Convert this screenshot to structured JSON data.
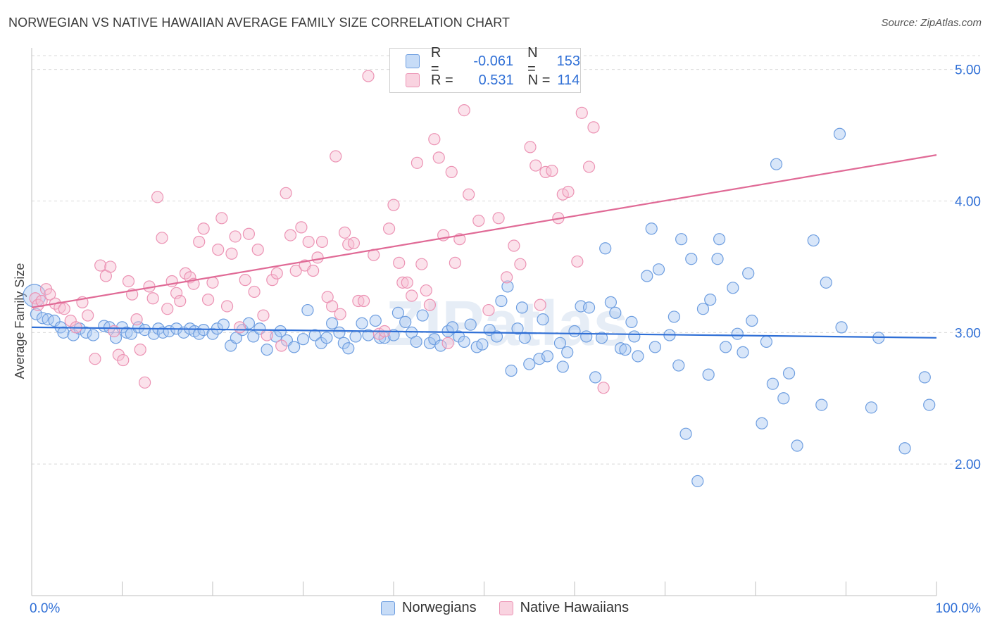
{
  "title": "NORWEGIAN VS NATIVE HAWAIIAN AVERAGE FAMILY SIZE CORRELATION CHART",
  "source": "Source: ZipAtlas.com",
  "watermark": "ZIPatlas",
  "legend": {
    "rows": [
      {
        "r_label": "R =",
        "r_value": "-0.061",
        "n_label": "N =",
        "n_value": "153"
      },
      {
        "r_label": "R =",
        "r_value": "0.531",
        "n_label": "N =",
        "n_value": "114"
      }
    ]
  },
  "colors": {
    "blue": "#2f6fd6",
    "blue_fill": "#a9c8f2",
    "blue_stroke": "#6e9ee0",
    "pink": "#e06a96",
    "pink_fill": "#f6bfd2",
    "pink_stroke": "#ec93b4",
    "grid": "#d9d9d9",
    "axis_text": "#2f6fd6"
  },
  "chart_data": {
    "type": "scatter",
    "title": "NORWEGIAN VS NATIVE HAWAIIAN AVERAGE FAMILY SIZE CORRELATION CHART",
    "xlabel": "",
    "ylabel": "Average Family Size",
    "xlim": [
      0,
      100
    ],
    "ylim": [
      1.0,
      5.1
    ],
    "x_tick_labels": [
      "0.0%",
      "100.0%"
    ],
    "y_ticks": [
      2.0,
      3.0,
      4.0,
      5.0
    ],
    "y_tick_labels": [
      "2.00",
      "3.00",
      "4.00",
      "5.00"
    ],
    "grid": true,
    "legend_position": "top-center",
    "series": [
      {
        "name": "Norwegians",
        "color": "#2f6fd6",
        "r": -0.061,
        "n": 153,
        "trend": [
          [
            0,
            3.04
          ],
          [
            100,
            2.96
          ]
        ],
        "points": [
          [
            0.3,
            3.28
          ],
          [
            0.5,
            3.14
          ],
          [
            1.2,
            3.11
          ],
          [
            1.8,
            3.1
          ],
          [
            2.5,
            3.09
          ],
          [
            3.2,
            3.04
          ],
          [
            3.5,
            3.0
          ],
          [
            4.6,
            2.98
          ],
          [
            5.3,
            3.03
          ],
          [
            6.0,
            3.0
          ],
          [
            6.8,
            2.98
          ],
          [
            8.0,
            3.05
          ],
          [
            8.6,
            3.04
          ],
          [
            9.3,
            2.96
          ],
          [
            10.0,
            3.04
          ],
          [
            10.5,
            3.0
          ],
          [
            11.0,
            2.99
          ],
          [
            11.8,
            3.04
          ],
          [
            12.5,
            3.02
          ],
          [
            13.5,
            2.99
          ],
          [
            14.0,
            3.03
          ],
          [
            14.5,
            3.0
          ],
          [
            15.2,
            3.01
          ],
          [
            16.0,
            3.03
          ],
          [
            16.8,
            3.0
          ],
          [
            17.5,
            3.03
          ],
          [
            18.0,
            3.01
          ],
          [
            18.5,
            2.99
          ],
          [
            19.0,
            3.02
          ],
          [
            20.0,
            2.99
          ],
          [
            20.5,
            3.03
          ],
          [
            21.2,
            3.06
          ],
          [
            22.0,
            2.9
          ],
          [
            22.6,
            2.96
          ],
          [
            23.3,
            3.02
          ],
          [
            24.0,
            3.07
          ],
          [
            24.5,
            2.97
          ],
          [
            25.2,
            3.03
          ],
          [
            26.0,
            2.87
          ],
          [
            27.0,
            2.97
          ],
          [
            27.5,
            3.01
          ],
          [
            28.2,
            2.94
          ],
          [
            29.0,
            2.89
          ],
          [
            30.0,
            2.95
          ],
          [
            30.5,
            3.17
          ],
          [
            31.3,
            2.98
          ],
          [
            32.0,
            2.92
          ],
          [
            32.6,
            2.96
          ],
          [
            33.2,
            3.07
          ],
          [
            34.0,
            3.0
          ],
          [
            34.5,
            2.92
          ],
          [
            35.0,
            2.88
          ],
          [
            35.8,
            2.97
          ],
          [
            36.5,
            3.07
          ],
          [
            37.2,
            2.98
          ],
          [
            38.0,
            3.09
          ],
          [
            38.5,
            2.96
          ],
          [
            39.0,
            2.96
          ],
          [
            40.0,
            2.98
          ],
          [
            40.5,
            3.15
          ],
          [
            41.3,
            3.08
          ],
          [
            42.0,
            3.0
          ],
          [
            42.5,
            2.93
          ],
          [
            43.2,
            3.13
          ],
          [
            44.0,
            2.92
          ],
          [
            44.5,
            2.95
          ],
          [
            45.2,
            2.9
          ],
          [
            46.0,
            3.01
          ],
          [
            46.5,
            3.04
          ],
          [
            47.2,
            2.97
          ],
          [
            47.8,
            2.93
          ],
          [
            48.5,
            3.06
          ],
          [
            49.2,
            2.89
          ],
          [
            49.8,
            2.91
          ],
          [
            50.6,
            3.02
          ],
          [
            51.4,
            2.97
          ],
          [
            51.9,
            3.24
          ],
          [
            52.6,
            3.35
          ],
          [
            53.0,
            2.71
          ],
          [
            53.7,
            3.03
          ],
          [
            54.2,
            3.19
          ],
          [
            54.5,
            2.96
          ],
          [
            55.0,
            2.76
          ],
          [
            56.1,
            2.8
          ],
          [
            56.5,
            3.1
          ],
          [
            57.0,
            2.82
          ],
          [
            58.4,
            2.92
          ],
          [
            58.7,
            2.74
          ],
          [
            59.2,
            2.85
          ],
          [
            60.0,
            3.01
          ],
          [
            60.7,
            3.2
          ],
          [
            61.3,
            2.97
          ],
          [
            61.6,
            3.19
          ],
          [
            62.3,
            2.66
          ],
          [
            63.0,
            2.96
          ],
          [
            63.4,
            3.64
          ],
          [
            64.0,
            3.23
          ],
          [
            64.5,
            3.15
          ],
          [
            65.1,
            2.88
          ],
          [
            65.6,
            2.87
          ],
          [
            66.3,
            3.08
          ],
          [
            66.6,
            2.97
          ],
          [
            67.0,
            2.82
          ],
          [
            68.0,
            3.43
          ],
          [
            68.5,
            3.79
          ],
          [
            68.9,
            2.89
          ],
          [
            69.3,
            3.48
          ],
          [
            70.5,
            2.98
          ],
          [
            71.0,
            3.12
          ],
          [
            71.5,
            2.75
          ],
          [
            71.8,
            3.71
          ],
          [
            72.3,
            2.23
          ],
          [
            72.9,
            3.56
          ],
          [
            73.6,
            1.87
          ],
          [
            74.2,
            3.18
          ],
          [
            74.8,
            2.68
          ],
          [
            75.0,
            3.25
          ],
          [
            75.8,
            3.56
          ],
          [
            76.0,
            3.71
          ],
          [
            76.7,
            2.89
          ],
          [
            77.5,
            3.34
          ],
          [
            78.0,
            2.99
          ],
          [
            78.6,
            2.85
          ],
          [
            79.2,
            3.45
          ],
          [
            79.6,
            3.09
          ],
          [
            80.7,
            2.31
          ],
          [
            81.2,
            2.93
          ],
          [
            81.9,
            2.61
          ],
          [
            82.3,
            4.28
          ],
          [
            83.1,
            2.5
          ],
          [
            83.7,
            2.69
          ],
          [
            84.6,
            2.14
          ],
          [
            86.4,
            3.7
          ],
          [
            87.3,
            2.45
          ],
          [
            87.8,
            3.38
          ],
          [
            89.3,
            4.51
          ],
          [
            89.5,
            3.04
          ],
          [
            92.8,
            2.43
          ],
          [
            93.6,
            2.96
          ],
          [
            96.5,
            2.12
          ],
          [
            98.7,
            2.66
          ],
          [
            99.2,
            2.45
          ]
        ]
      },
      {
        "name": "Native Hawaiians",
        "color": "#e06a96",
        "r": 0.531,
        "n": 114,
        "trend": [
          [
            0,
            3.19
          ],
          [
            100,
            4.35
          ]
        ],
        "points": [
          [
            0.4,
            3.26
          ],
          [
            0.7,
            3.21
          ],
          [
            1.1,
            3.24
          ],
          [
            1.6,
            3.33
          ],
          [
            2.0,
            3.29
          ],
          [
            2.6,
            3.22
          ],
          [
            3.1,
            3.19
          ],
          [
            3.6,
            3.18
          ],
          [
            4.3,
            3.09
          ],
          [
            4.9,
            3.04
          ],
          [
            5.6,
            3.23
          ],
          [
            6.2,
            3.13
          ],
          [
            7.0,
            2.8
          ],
          [
            7.6,
            3.51
          ],
          [
            8.2,
            3.43
          ],
          [
            8.7,
            3.5
          ],
          [
            9.1,
            3.01
          ],
          [
            9.6,
            2.83
          ],
          [
            10.1,
            2.79
          ],
          [
            10.7,
            3.39
          ],
          [
            11.1,
            3.29
          ],
          [
            11.6,
            3.1
          ],
          [
            12.0,
            2.87
          ],
          [
            12.5,
            2.62
          ],
          [
            13.0,
            3.35
          ],
          [
            13.4,
            3.26
          ],
          [
            13.9,
            4.03
          ],
          [
            14.4,
            3.72
          ],
          [
            15.0,
            3.18
          ],
          [
            15.5,
            3.39
          ],
          [
            16.0,
            3.3
          ],
          [
            16.4,
            3.24
          ],
          [
            17.0,
            3.45
          ],
          [
            17.5,
            3.42
          ],
          [
            17.9,
            3.37
          ],
          [
            18.5,
            3.69
          ],
          [
            19.0,
            3.79
          ],
          [
            19.5,
            3.25
          ],
          [
            20.0,
            3.38
          ],
          [
            20.6,
            3.63
          ],
          [
            21.0,
            3.87
          ],
          [
            21.6,
            3.2
          ],
          [
            22.1,
            3.6
          ],
          [
            22.5,
            3.73
          ],
          [
            23.0,
            3.04
          ],
          [
            23.6,
            3.4
          ],
          [
            24.0,
            3.75
          ],
          [
            24.6,
            3.31
          ],
          [
            25.0,
            3.63
          ],
          [
            25.6,
            3.13
          ],
          [
            26.0,
            2.98
          ],
          [
            26.6,
            3.4
          ],
          [
            27.1,
            3.45
          ],
          [
            27.6,
            2.9
          ],
          [
            28.1,
            4.06
          ],
          [
            28.6,
            3.74
          ],
          [
            29.2,
            3.47
          ],
          [
            29.8,
            3.8
          ],
          [
            30.2,
            3.51
          ],
          [
            30.6,
            3.69
          ],
          [
            31.1,
            3.47
          ],
          [
            31.6,
            3.57
          ],
          [
            32.1,
            3.69
          ],
          [
            32.7,
            3.27
          ],
          [
            33.2,
            3.2
          ],
          [
            33.6,
            4.34
          ],
          [
            34.1,
            3.14
          ],
          [
            34.6,
            3.76
          ],
          [
            35.0,
            3.67
          ],
          [
            35.6,
            3.68
          ],
          [
            36.1,
            3.24
          ],
          [
            36.7,
            3.24
          ],
          [
            37.2,
            4.95
          ],
          [
            37.8,
            3.59
          ],
          [
            38.4,
            2.99
          ],
          [
            39.0,
            3.01
          ],
          [
            39.5,
            3.79
          ],
          [
            40.0,
            3.97
          ],
          [
            40.6,
            3.53
          ],
          [
            41.0,
            3.38
          ],
          [
            41.5,
            3.38
          ],
          [
            42.0,
            3.28
          ],
          [
            42.6,
            4.29
          ],
          [
            43.1,
            3.52
          ],
          [
            43.6,
            3.32
          ],
          [
            44.0,
            3.21
          ],
          [
            44.5,
            4.47
          ],
          [
            45.0,
            4.33
          ],
          [
            45.5,
            3.74
          ],
          [
            46.0,
            2.92
          ],
          [
            46.4,
            4.22
          ],
          [
            46.8,
            3.53
          ],
          [
            47.3,
            3.71
          ],
          [
            47.8,
            4.69
          ],
          [
            48.3,
            4.05
          ],
          [
            49.4,
            3.85
          ],
          [
            50.5,
            3.17
          ],
          [
            51.6,
            3.87
          ],
          [
            52.5,
            3.42
          ],
          [
            53.3,
            3.66
          ],
          [
            54.0,
            3.52
          ],
          [
            55.1,
            4.41
          ],
          [
            55.7,
            4.27
          ],
          [
            56.2,
            3.21
          ],
          [
            56.8,
            4.22
          ],
          [
            57.5,
            4.23
          ],
          [
            58.2,
            3.87
          ],
          [
            58.7,
            4.05
          ],
          [
            59.3,
            4.07
          ],
          [
            60.3,
            3.54
          ],
          [
            60.8,
            4.67
          ],
          [
            61.6,
            4.26
          ],
          [
            62.1,
            4.56
          ],
          [
            63.2,
            2.58
          ]
        ]
      }
    ]
  },
  "bottom_legend": [
    {
      "label": "Norwegians"
    },
    {
      "label": "Native Hawaiians"
    }
  ]
}
